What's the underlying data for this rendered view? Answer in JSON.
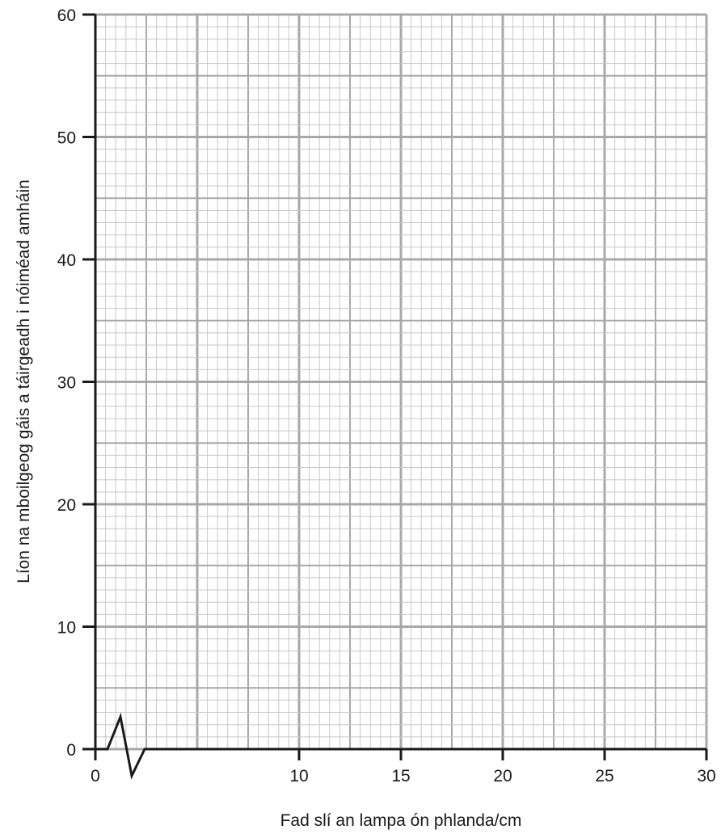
{
  "chart_data": {
    "type": "line",
    "title": "",
    "xlabel": "Fad slí an lampa ón phlanda/cm",
    "ylabel": "Líon na mboilgeog gáis a táirgeadh i nóiméad amháin",
    "x_ticks": [
      "0",
      "10",
      "15",
      "20",
      "25",
      "30"
    ],
    "x_tick_values": [
      0,
      10,
      15,
      20,
      25,
      30
    ],
    "y_ticks": [
      "0",
      "10",
      "20",
      "30",
      "40",
      "50",
      "60"
    ],
    "y_tick_values": [
      0,
      10,
      20,
      30,
      40,
      50,
      60
    ],
    "xlim": [
      0,
      30
    ],
    "ylim": [
      0,
      60
    ],
    "x_axis_break": true,
    "grid": true,
    "series": [],
    "colors": {
      "grid_major": "#a8a8a8",
      "grid_minor": "#c8c8c8",
      "axis": "#1a1a1a"
    }
  }
}
